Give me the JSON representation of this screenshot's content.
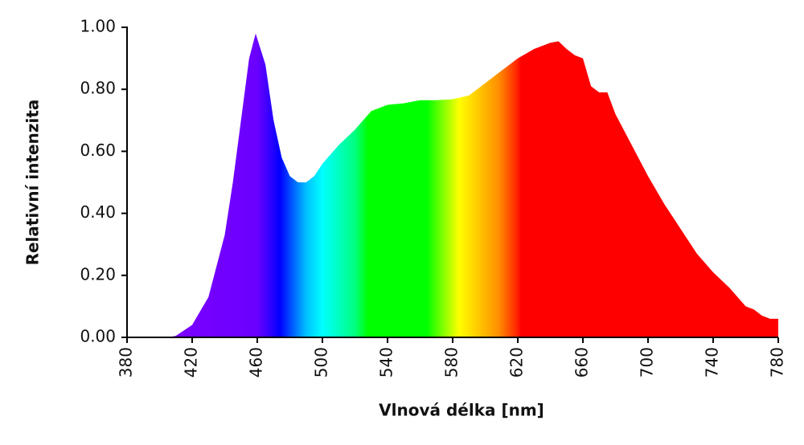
{
  "chart_data": {
    "type": "area",
    "xlabel": "Vlnová délka [nm]",
    "ylabel": "Relativní intenzita",
    "x": [
      405,
      410,
      420,
      430,
      440,
      445,
      450,
      455,
      459,
      465,
      470,
      475,
      480,
      485,
      490,
      495,
      500,
      510,
      520,
      530,
      540,
      550,
      560,
      570,
      580,
      590,
      600,
      610,
      620,
      630,
      640,
      645,
      650,
      655,
      660,
      665,
      670,
      675,
      680,
      690,
      700,
      710,
      720,
      730,
      740,
      750,
      760,
      765,
      770,
      775,
      780
    ],
    "y": [
      0,
      0.005,
      0.04,
      0.13,
      0.33,
      0.5,
      0.7,
      0.9,
      0.98,
      0.88,
      0.7,
      0.58,
      0.52,
      0.5,
      0.5,
      0.52,
      0.56,
      0.62,
      0.67,
      0.73,
      0.75,
      0.755,
      0.765,
      0.765,
      0.768,
      0.78,
      0.82,
      0.86,
      0.9,
      0.93,
      0.95,
      0.955,
      0.93,
      0.91,
      0.9,
      0.81,
      0.79,
      0.79,
      0.72,
      0.62,
      0.52,
      0.43,
      0.35,
      0.27,
      0.21,
      0.16,
      0.1,
      0.09,
      0.07,
      0.06,
      0.06
    ],
    "xlim": [
      380,
      780
    ],
    "ylim": [
      0,
      1
    ],
    "xticks": [
      380,
      420,
      460,
      500,
      540,
      580,
      620,
      660,
      700,
      740,
      780
    ],
    "yticks": [
      {
        "value": 0,
        "label": "0.00"
      },
      {
        "value": 0.2,
        "label": "0.20"
      },
      {
        "value": 0.4,
        "label": "0.40"
      },
      {
        "value": 0.6,
        "label": "0.60"
      },
      {
        "value": 0.8,
        "label": "0.80"
      },
      {
        "value": 1,
        "label": "1.00"
      }
    ]
  }
}
